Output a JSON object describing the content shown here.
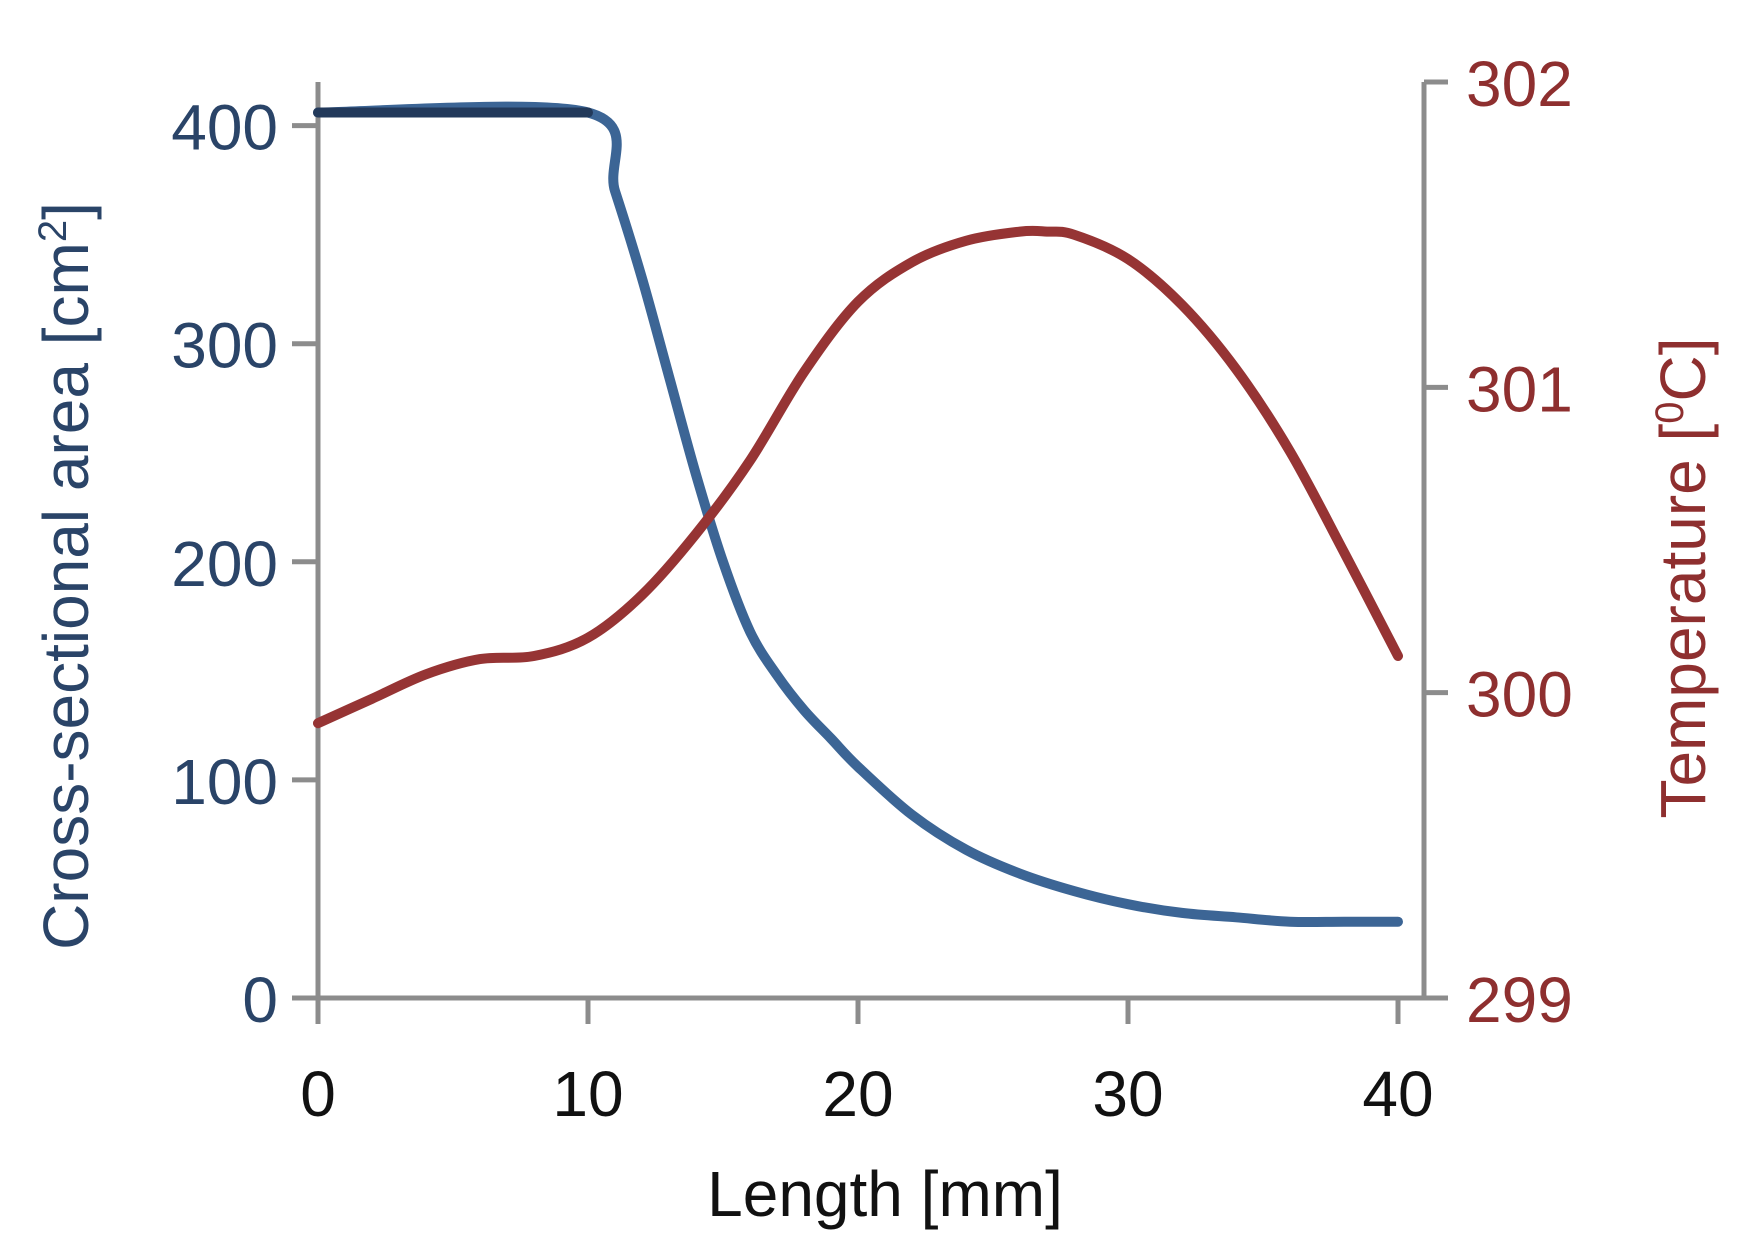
{
  "chart_data": {
    "type": "line",
    "x_axis": {
      "label": "Length [mm]",
      "ticks": [
        "0",
        "10",
        "20",
        "30",
        "40"
      ],
      "range": [
        0,
        40
      ]
    },
    "y_axis_left": {
      "label_main": "Cross-sectional area [cm",
      "label_sup": "2",
      "label_end": "]",
      "ticks": [
        "0",
        "100",
        "200",
        "300",
        "400"
      ],
      "range": [
        0,
        420
      ],
      "color": "#2a4468"
    },
    "y_axis_right": {
      "label_main": "Temperature [",
      "label_sup": "0",
      "label_end": "C]",
      "ticks": [
        "299",
        "300",
        "301",
        "302"
      ],
      "range": [
        299,
        302
      ],
      "color": "#8e2f2f"
    },
    "series": [
      {
        "name": "Cross-sectional area",
        "axis": "left",
        "color": "#3c6595",
        "x": [
          0,
          10,
          11,
          12,
          13,
          14,
          15,
          16,
          17,
          18,
          19,
          20,
          22,
          24,
          26,
          28,
          30,
          32,
          34,
          36,
          38,
          40
        ],
        "y": [
          406,
          406,
          370,
          330,
          285,
          240,
          200,
          168,
          148,
          132,
          119,
          106,
          84,
          68,
          57,
          49,
          43,
          39,
          37,
          35,
          35,
          35
        ]
      },
      {
        "name": "Temperature",
        "axis": "right",
        "color": "#963434",
        "x": [
          0,
          2,
          4,
          6,
          8,
          10,
          12,
          14,
          16,
          18,
          20,
          22,
          24,
          26,
          27,
          28,
          30,
          32,
          34,
          36,
          38,
          40
        ],
        "y": [
          299.9,
          299.98,
          300.06,
          300.11,
          300.12,
          300.18,
          300.32,
          300.52,
          300.76,
          301.05,
          301.28,
          301.41,
          301.48,
          301.51,
          301.51,
          301.5,
          301.42,
          301.27,
          301.06,
          300.79,
          300.46,
          300.12
        ]
      }
    ]
  }
}
